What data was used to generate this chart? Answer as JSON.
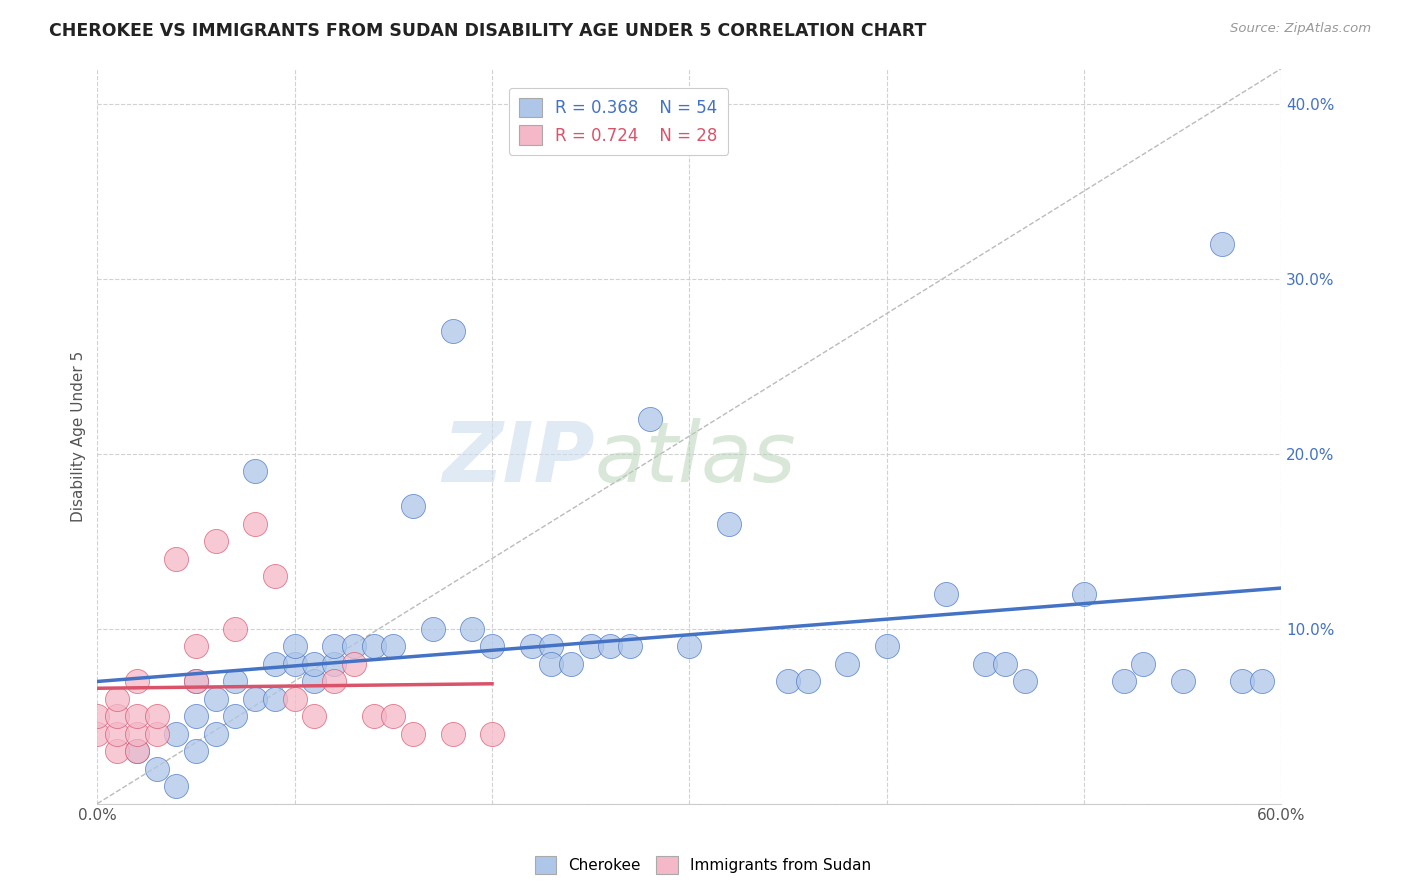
{
  "title": "CHEROKEE VS IMMIGRANTS FROM SUDAN DISABILITY AGE UNDER 5 CORRELATION CHART",
  "source": "Source: ZipAtlas.com",
  "ylabel": "Disability Age Under 5",
  "xlim": [
    0.0,
    0.6
  ],
  "ylim": [
    0.0,
    0.42
  ],
  "xticks": [
    0.0,
    0.1,
    0.2,
    0.3,
    0.4,
    0.5,
    0.6
  ],
  "yticks": [
    0.0,
    0.1,
    0.2,
    0.3,
    0.4
  ],
  "cherokee_R": 0.368,
  "cherokee_N": 54,
  "sudan_R": 0.724,
  "sudan_N": 28,
  "cherokee_color": "#aec6e8",
  "sudan_color": "#f4b8c8",
  "cherokee_line_color": "#4472c4",
  "sudan_line_color": "#d9536a",
  "background_color": "#ffffff",
  "grid_color": "#cccccc",
  "cherokee_x": [
    0.02,
    0.03,
    0.04,
    0.04,
    0.05,
    0.05,
    0.05,
    0.06,
    0.06,
    0.07,
    0.07,
    0.08,
    0.08,
    0.09,
    0.09,
    0.1,
    0.1,
    0.11,
    0.11,
    0.12,
    0.12,
    0.13,
    0.14,
    0.15,
    0.16,
    0.17,
    0.18,
    0.19,
    0.2,
    0.22,
    0.23,
    0.23,
    0.24,
    0.25,
    0.26,
    0.27,
    0.28,
    0.3,
    0.32,
    0.35,
    0.36,
    0.38,
    0.4,
    0.43,
    0.45,
    0.46,
    0.47,
    0.5,
    0.52,
    0.53,
    0.55,
    0.57,
    0.58,
    0.59
  ],
  "cherokee_y": [
    0.03,
    0.02,
    0.04,
    0.01,
    0.03,
    0.07,
    0.05,
    0.04,
    0.06,
    0.05,
    0.07,
    0.06,
    0.19,
    0.08,
    0.06,
    0.08,
    0.09,
    0.07,
    0.08,
    0.08,
    0.09,
    0.09,
    0.09,
    0.09,
    0.17,
    0.1,
    0.27,
    0.1,
    0.09,
    0.09,
    0.09,
    0.08,
    0.08,
    0.09,
    0.09,
    0.09,
    0.22,
    0.09,
    0.16,
    0.07,
    0.07,
    0.08,
    0.09,
    0.12,
    0.08,
    0.08,
    0.07,
    0.12,
    0.07,
    0.08,
    0.07,
    0.32,
    0.07,
    0.07
  ],
  "sudan_x": [
    0.0,
    0.0,
    0.01,
    0.01,
    0.01,
    0.01,
    0.02,
    0.02,
    0.02,
    0.02,
    0.03,
    0.03,
    0.04,
    0.05,
    0.05,
    0.06,
    0.07,
    0.08,
    0.09,
    0.1,
    0.11,
    0.12,
    0.13,
    0.14,
    0.15,
    0.16,
    0.18,
    0.2
  ],
  "sudan_y": [
    0.04,
    0.05,
    0.03,
    0.04,
    0.05,
    0.06,
    0.03,
    0.04,
    0.05,
    0.07,
    0.04,
    0.05,
    0.14,
    0.09,
    0.07,
    0.15,
    0.1,
    0.16,
    0.13,
    0.06,
    0.05,
    0.07,
    0.08,
    0.05,
    0.05,
    0.04,
    0.04,
    0.04
  ]
}
